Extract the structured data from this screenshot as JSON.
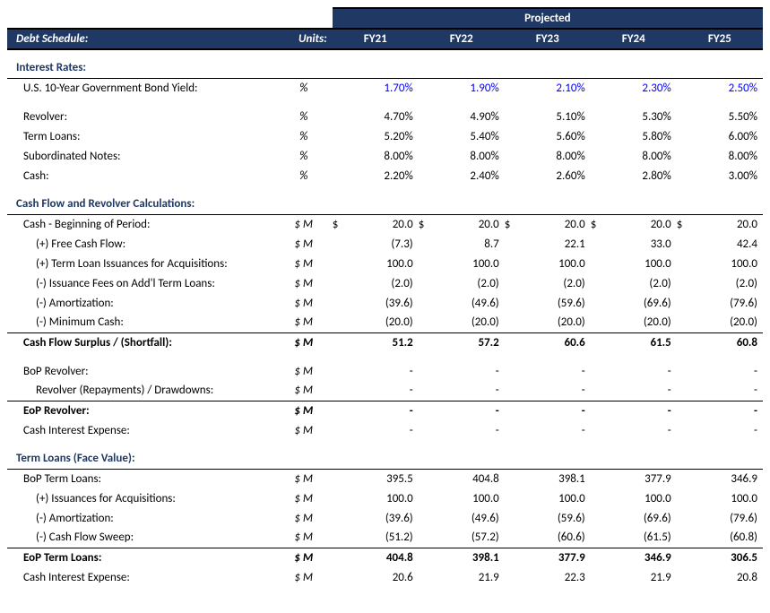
{
  "header": {
    "title": "Debt Schedule:",
    "units_label": "Units:",
    "projected_label": "Projected",
    "years": [
      "FY21",
      "FY22",
      "FY23",
      "FY24",
      "FY25"
    ]
  },
  "sections": {
    "interest_rates": {
      "title": "Interest Rates:",
      "rows": [
        {
          "label": "U.S. 10-Year Government Bond Yield:",
          "unit": "%",
          "vals": [
            "1.70%",
            "1.90%",
            "2.10%",
            "2.30%",
            "2.50%"
          ],
          "blue": true
        },
        {
          "label": "Revolver:",
          "unit": "%",
          "vals": [
            "4.70%",
            "4.90%",
            "5.10%",
            "5.30%",
            "5.50%"
          ]
        },
        {
          "label": "Term Loans:",
          "unit": "%",
          "vals": [
            "5.20%",
            "5.40%",
            "5.60%",
            "5.80%",
            "6.00%"
          ]
        },
        {
          "label": "Subordinated Notes:",
          "unit": "%",
          "vals": [
            "8.00%",
            "8.00%",
            "8.00%",
            "8.00%",
            "8.00%"
          ]
        },
        {
          "label": "Cash:",
          "unit": "%",
          "vals": [
            "2.20%",
            "2.40%",
            "2.60%",
            "2.80%",
            "3.00%"
          ]
        }
      ]
    },
    "cash_flow": {
      "title": "Cash Flow and Revolver Calculations:",
      "rows": [
        {
          "label": "Cash - Beginning of Period:",
          "unit": "$ M",
          "vals": [
            "20.0",
            "20.0",
            "20.0",
            "20.0",
            "20.0"
          ],
          "dollar": true
        },
        {
          "label": "(+) Free Cash Flow:",
          "unit": "$ M",
          "vals": [
            "(7.3)",
            "8.7",
            "22.1",
            "33.0",
            "42.4"
          ],
          "indent": true
        },
        {
          "label": "(+) Term Loan Issuances for Acquisitions:",
          "unit": "$ M",
          "vals": [
            "100.0",
            "100.0",
            "100.0",
            "100.0",
            "100.0"
          ],
          "indent": true
        },
        {
          "label": "(-) Issuance Fees on Add'l Term Loans:",
          "unit": "$ M",
          "vals": [
            "(2.0)",
            "(2.0)",
            "(2.0)",
            "(2.0)",
            "(2.0)"
          ],
          "indent": true
        },
        {
          "label": "(-) Amortization:",
          "unit": "$ M",
          "vals": [
            "(39.6)",
            "(49.6)",
            "(59.6)",
            "(69.6)",
            "(79.6)"
          ],
          "indent": true
        },
        {
          "label": "(-) Minimum Cash:",
          "unit": "$ M",
          "vals": [
            "(20.0)",
            "(20.0)",
            "(20.0)",
            "(20.0)",
            "(20.0)"
          ],
          "indent": true,
          "underline": true
        }
      ],
      "surplus": {
        "label": "Cash Flow Surplus / (Shortfall):",
        "unit": "$ M",
        "vals": [
          "51.2",
          "57.2",
          "60.6",
          "61.5",
          "60.8"
        ]
      },
      "revolver_rows": [
        {
          "label": "BoP Revolver:",
          "unit": "$ M",
          "vals": [
            "-",
            "-",
            "-",
            "-",
            "-"
          ]
        },
        {
          "label": "Revolver (Repayments) / Drawdowns:",
          "unit": "$ M",
          "vals": [
            "-",
            "-",
            "-",
            "-",
            "-"
          ],
          "indent": true,
          "underline": true
        }
      ],
      "eop_revolver": {
        "label": "EoP Revolver:",
        "unit": "$ M",
        "vals": [
          "-",
          "-",
          "-",
          "-",
          "-"
        ]
      },
      "cash_int": {
        "label": "Cash Interest Expense:",
        "unit": "$ M",
        "vals": [
          "-",
          "-",
          "-",
          "-",
          "-"
        ]
      }
    },
    "term_loans": {
      "title": "Term Loans (Face Value):",
      "rows": [
        {
          "label": "BoP Term Loans:",
          "unit": "$ M",
          "vals": [
            "395.5",
            "404.8",
            "398.1",
            "377.9",
            "346.9"
          ]
        },
        {
          "label": "(+) Issuances for Acquisitions:",
          "unit": "$ M",
          "vals": [
            "100.0",
            "100.0",
            "100.0",
            "100.0",
            "100.0"
          ],
          "indent": true
        },
        {
          "label": "(-) Amortization:",
          "unit": "$ M",
          "vals": [
            "(39.6)",
            "(49.6)",
            "(59.6)",
            "(69.6)",
            "(79.6)"
          ],
          "indent": true
        },
        {
          "label": "(-) Cash Flow Sweep:",
          "unit": "$ M",
          "vals": [
            "(51.2)",
            "(57.2)",
            "(60.6)",
            "(61.5)",
            "(60.8)"
          ],
          "indent": true,
          "underline": true
        }
      ],
      "eop": {
        "label": "EoP Term Loans:",
        "unit": "$ M",
        "vals": [
          "404.8",
          "398.1",
          "377.9",
          "346.9",
          "306.5"
        ]
      },
      "cash_int": {
        "label": "Cash Interest Expense:",
        "unit": "$ M",
        "vals": [
          "20.6",
          "21.9",
          "22.3",
          "21.9",
          "20.8"
        ]
      }
    }
  }
}
